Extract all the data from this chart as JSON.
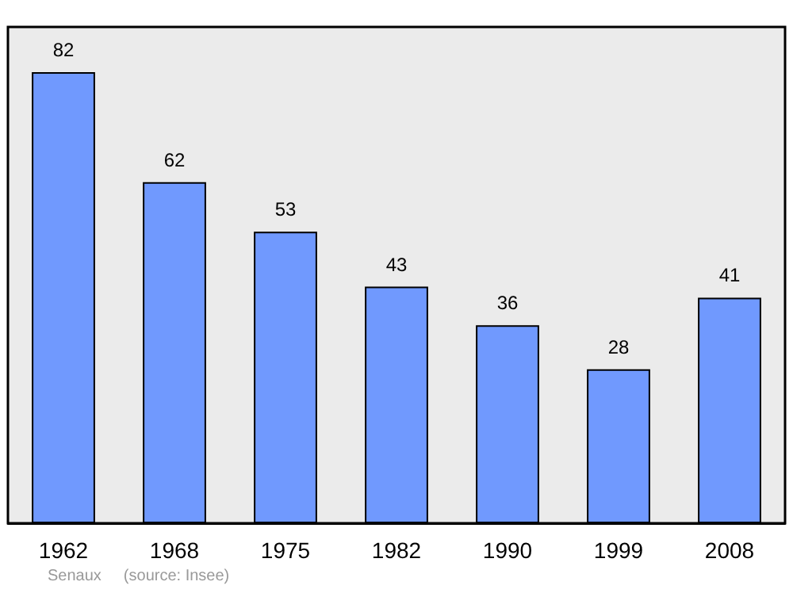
{
  "chart_data": {
    "type": "bar",
    "categories": [
      "1962",
      "1968",
      "1975",
      "1982",
      "1990",
      "1999",
      "2008"
    ],
    "values": [
      82,
      62,
      53,
      43,
      36,
      28,
      41
    ],
    "color": "#7099fe",
    "data_labels": true,
    "annotations": [
      "Senaux",
      "(source: Insee)"
    ]
  }
}
